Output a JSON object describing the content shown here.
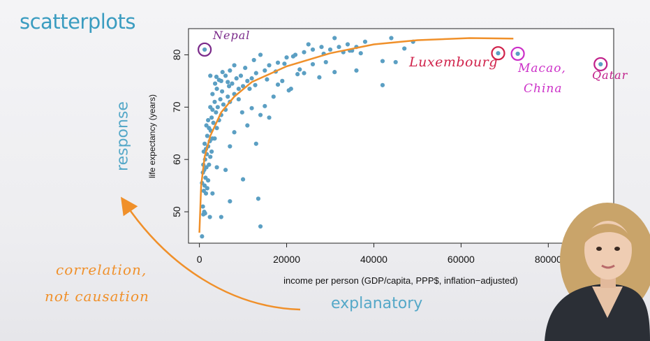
{
  "slide": {
    "title": "scatterplots",
    "response_label": "response",
    "explanatory_label": "explanatory",
    "note_line1": "correlation,",
    "note_line2": "not causation"
  },
  "annotations": {
    "nepal": "Nepal",
    "luxembourg": "Luxembourg",
    "macao_line1": "Macao,",
    "macao_line2": "China",
    "qatar": "Qatar"
  },
  "colors": {
    "point": "#5b9fc3",
    "curve": "#f0902a",
    "nepal_ring": "#7a2a8a",
    "luxembourg_ring": "#d0224a",
    "macao_ring": "#cc30c8",
    "qatar_ring": "#c0208a"
  },
  "chart_data": {
    "type": "scatter",
    "xlabel": "income per person (GDP/capita, PPP$, inflation−adjusted)",
    "ylabel": "life expectancy (years)",
    "xlim": [
      -2500,
      95000
    ],
    "ylim": [
      44,
      85
    ],
    "xticks": [
      0,
      20000,
      40000,
      60000,
      80000
    ],
    "yticks": [
      50,
      60,
      70,
      80
    ],
    "grid": false,
    "highlighted": [
      {
        "name": "Nepal",
        "x": 1200,
        "y": 81
      },
      {
        "name": "Luxembourg",
        "x": 68500,
        "y": 80.3
      },
      {
        "name": "Macao, China",
        "x": 73000,
        "y": 80.2
      },
      {
        "name": "Qatar",
        "x": 92000,
        "y": 78.2
      }
    ],
    "trend": [
      [
        0,
        46
      ],
      [
        400,
        55
      ],
      [
        1200,
        60.5
      ],
      [
        2500,
        64.5
      ],
      [
        5000,
        69
      ],
      [
        8000,
        72
      ],
      [
        12000,
        74.8
      ],
      [
        20000,
        77.8
      ],
      [
        30000,
        80.3
      ],
      [
        40000,
        82
      ],
      [
        50000,
        82.8
      ],
      [
        62000,
        83.2
      ],
      [
        72000,
        83.1
      ]
    ],
    "points": [
      [
        600,
        45.3
      ],
      [
        900,
        49.5
      ],
      [
        1100,
        50
      ],
      [
        800,
        51
      ],
      [
        1300,
        49.7
      ],
      [
        1500,
        53.5
      ],
      [
        1000,
        54
      ],
      [
        1200,
        55
      ],
      [
        1800,
        54.5
      ],
      [
        600,
        55.5
      ],
      [
        1400,
        56.5
      ],
      [
        2000,
        56
      ],
      [
        800,
        57.5
      ],
      [
        1100,
        58
      ],
      [
        1600,
        58.5
      ],
      [
        900,
        59
      ],
      [
        2200,
        59
      ],
      [
        1300,
        60
      ],
      [
        1700,
        61
      ],
      [
        2500,
        60.5
      ],
      [
        1000,
        61.5
      ],
      [
        2800,
        61.5
      ],
      [
        1500,
        62
      ],
      [
        2000,
        62.5
      ],
      [
        1200,
        63
      ],
      [
        2400,
        63.5
      ],
      [
        3000,
        64
      ],
      [
        1800,
        64.5
      ],
      [
        3500,
        64
      ],
      [
        2600,
        65.5
      ],
      [
        2200,
        66
      ],
      [
        4000,
        66
      ],
      [
        1600,
        66.5
      ],
      [
        3200,
        67
      ],
      [
        2000,
        67.5
      ],
      [
        4500,
        67.5
      ],
      [
        2800,
        68
      ],
      [
        5000,
        68.5
      ],
      [
        3800,
        69
      ],
      [
        3000,
        69.5
      ],
      [
        6000,
        69.5
      ],
      [
        2500,
        70
      ],
      [
        4200,
        70
      ],
      [
        5500,
        70.5
      ],
      [
        3500,
        71
      ],
      [
        7000,
        71
      ],
      [
        4800,
        71.5
      ],
      [
        6500,
        72
      ],
      [
        3000,
        72.5
      ],
      [
        8000,
        72.5
      ],
      [
        5200,
        73
      ],
      [
        9000,
        73.5
      ],
      [
        4000,
        73.5
      ],
      [
        6800,
        74
      ],
      [
        10000,
        74
      ],
      [
        3600,
        74.5
      ],
      [
        7500,
        74.5
      ],
      [
        11000,
        75
      ],
      [
        5000,
        75
      ],
      [
        8500,
        75.5
      ],
      [
        12000,
        75.5
      ],
      [
        2500,
        76
      ],
      [
        6000,
        76
      ],
      [
        9500,
        76
      ],
      [
        13000,
        76.5
      ],
      [
        7000,
        77
      ],
      [
        15000,
        77
      ],
      [
        10500,
        77.5
      ],
      [
        16000,
        78
      ],
      [
        8000,
        78
      ],
      [
        18000,
        78.5
      ],
      [
        12500,
        79
      ],
      [
        20000,
        79.5
      ],
      [
        14000,
        80
      ],
      [
        22000,
        80
      ],
      [
        24000,
        80.5
      ],
      [
        26000,
        81
      ],
      [
        28000,
        81.5
      ],
      [
        30000,
        81
      ],
      [
        32000,
        81.5
      ],
      [
        34000,
        82
      ],
      [
        36000,
        81.5
      ],
      [
        25000,
        82
      ],
      [
        31000,
        83.2
      ],
      [
        38000,
        82.5
      ],
      [
        44000,
        83.2
      ],
      [
        49000,
        82.5
      ],
      [
        47000,
        81.2
      ],
      [
        33000,
        80.5
      ],
      [
        35000,
        80.8
      ],
      [
        37000,
        80.3
      ],
      [
        42000,
        78.8
      ],
      [
        45000,
        78.6
      ],
      [
        29000,
        78.6
      ],
      [
        26000,
        78.2
      ],
      [
        23000,
        77.2
      ],
      [
        36000,
        77
      ],
      [
        31000,
        76.7
      ],
      [
        42000,
        74.2
      ],
      [
        21000,
        73.5
      ],
      [
        17000,
        72
      ],
      [
        15000,
        70.2
      ],
      [
        12000,
        69.8
      ],
      [
        14000,
        68.5
      ],
      [
        16000,
        68
      ],
      [
        11000,
        66.5
      ],
      [
        8000,
        65.2
      ],
      [
        13000,
        63
      ],
      [
        7000,
        62.5
      ],
      [
        6000,
        58
      ],
      [
        4000,
        58.5
      ],
      [
        10000,
        56.2
      ],
      [
        3000,
        53.5
      ],
      [
        7000,
        52
      ],
      [
        5000,
        49
      ],
      [
        13500,
        52.5
      ],
      [
        14000,
        47.2
      ],
      [
        2400,
        49
      ],
      [
        9800,
        69
      ],
      [
        19000,
        75
      ],
      [
        24000,
        76.5
      ],
      [
        27500,
        75.7
      ],
      [
        18000,
        74.3
      ],
      [
        20500,
        73.2
      ],
      [
        22500,
        76.3
      ],
      [
        15500,
        75.3
      ],
      [
        11500,
        73.5
      ],
      [
        9000,
        71.5
      ],
      [
        6500,
        74.8
      ],
      [
        5300,
        76.7
      ],
      [
        4500,
        75.2
      ],
      [
        3900,
        75.8
      ],
      [
        12800,
        74.2
      ],
      [
        17500,
        76.8
      ],
      [
        19500,
        78.3
      ],
      [
        21500,
        79.7
      ],
      [
        28500,
        80.2
      ],
      [
        34500,
        80.8
      ]
    ]
  }
}
